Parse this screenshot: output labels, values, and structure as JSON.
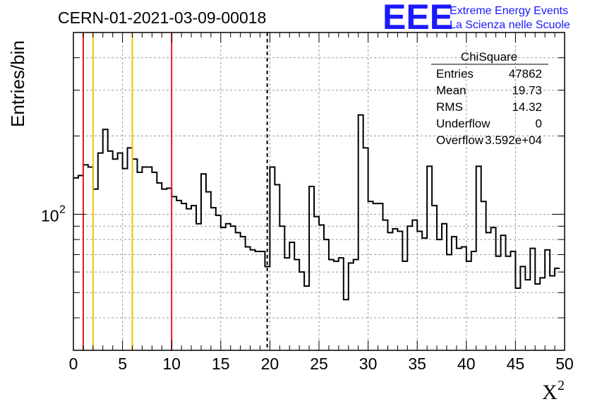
{
  "title": "CERN-01-2021-03-09-00018",
  "logo": {
    "text": "EEE",
    "line1": "Extreme Energy Events",
    "line2": "La Scienza nelle Scuole",
    "color": "#1a1aff"
  },
  "stats": {
    "name": "ChiSquare",
    "rows": [
      {
        "label": "Entries",
        "value": "47862"
      },
      {
        "label": "Mean",
        "value": "19.73"
      },
      {
        "label": "RMS",
        "value": "14.32"
      },
      {
        "label": "Underflow",
        "value": "0"
      },
      {
        "label": "Overflow",
        "value": "3.592e+04"
      }
    ]
  },
  "chart_data": {
    "type": "histogram",
    "xlabel": "X",
    "xlabel_sup": "2",
    "ylabel": "Entries/bin",
    "xlim": [
      0,
      50
    ],
    "ylim": [
      30,
      500
    ],
    "yscale": "log",
    "grid": true,
    "bin_width": 0.5,
    "x_ticks": [
      "0",
      "5",
      "10",
      "15",
      "20",
      "25",
      "30",
      "35",
      "40",
      "45",
      "50"
    ],
    "y_tick_label": "10",
    "y_tick_label_exp": "2",
    "values": [
      138,
      141,
      155,
      152,
      125,
      172,
      212,
      175,
      163,
      172,
      150,
      180,
      163,
      145,
      152,
      152,
      145,
      132,
      125,
      126,
      117,
      113,
      110,
      105,
      108,
      92,
      143,
      122,
      106,
      99,
      89,
      92,
      90,
      85,
      82,
      75,
      73,
      72,
      72,
      63,
      152,
      130,
      90,
      68,
      78,
      67,
      60,
      53,
      128,
      98,
      91,
      80,
      67,
      66,
      68,
      47,
      65,
      67,
      241,
      180,
      112,
      110,
      110,
      95,
      85,
      88,
      86,
      66,
      90,
      95,
      86,
      81,
      153,
      108,
      80,
      92,
      70,
      82,
      74,
      75,
      66,
      72,
      153,
      112,
      85,
      89,
      69,
      83,
      69,
      72,
      52,
      63,
      56,
      74,
      54,
      57,
      73,
      58,
      62
    ],
    "vlines": [
      {
        "x": 1,
        "color": "#e31a1c",
        "style": "solid"
      },
      {
        "x": 2,
        "color": "#f2c300",
        "style": "solid"
      },
      {
        "x": 6,
        "color": "#f2c300",
        "style": "solid"
      },
      {
        "x": 10,
        "color": "#e31a1c",
        "style": "solid"
      },
      {
        "x": 19.73,
        "color": "#000000",
        "style": "dashed"
      }
    ]
  }
}
